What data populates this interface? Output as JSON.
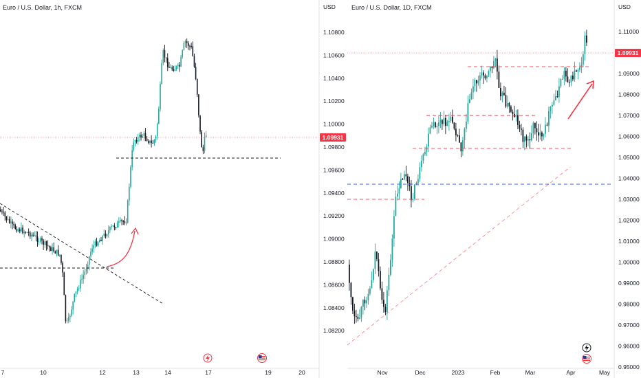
{
  "charts": [
    {
      "type": "candlestick",
      "title": "Euro / U.S. Dollar, 1h, FXCM",
      "currency": "USD",
      "current_price": "1.09931",
      "y_ticks": [
        "1.10800",
        "1.10600",
        "1.10400",
        "1.10200",
        "1.10000",
        "1.09800",
        "1.09600",
        "1.09400",
        "1.09200",
        "1.09000",
        "1.08800",
        "1.08600",
        "1.08400",
        "1.08200"
      ],
      "x_ticks": [
        "7",
        "10",
        "12",
        "13",
        "14",
        "17",
        "19",
        "20"
      ]
    },
    {
      "type": "candlestick",
      "title": "Euro / U.S. Dollar, 1D, FXCM",
      "currency": "USD",
      "current_price": "1.09931",
      "y_ticks": [
        "1.11000",
        "1.10000",
        "1.09000",
        "1.08000",
        "1.07000",
        "1.06000",
        "1.05000",
        "1.04000",
        "1.03000",
        "1.02000",
        "1.01000",
        "1.00000",
        "0.99000",
        "0.98000",
        "0.97000",
        "0.96000",
        "0.95000"
      ],
      "x_ticks": [
        "Nov",
        "Dec",
        "2023",
        "Feb",
        "Mar",
        "Apr",
        "May"
      ]
    }
  ],
  "colors": {
    "up": "#26a69a",
    "down": "#131722",
    "price_tag": "#f23645",
    "arrow": "#f23645",
    "dashed_red": "#f7525f",
    "dashed_blue": "#2962ff"
  }
}
